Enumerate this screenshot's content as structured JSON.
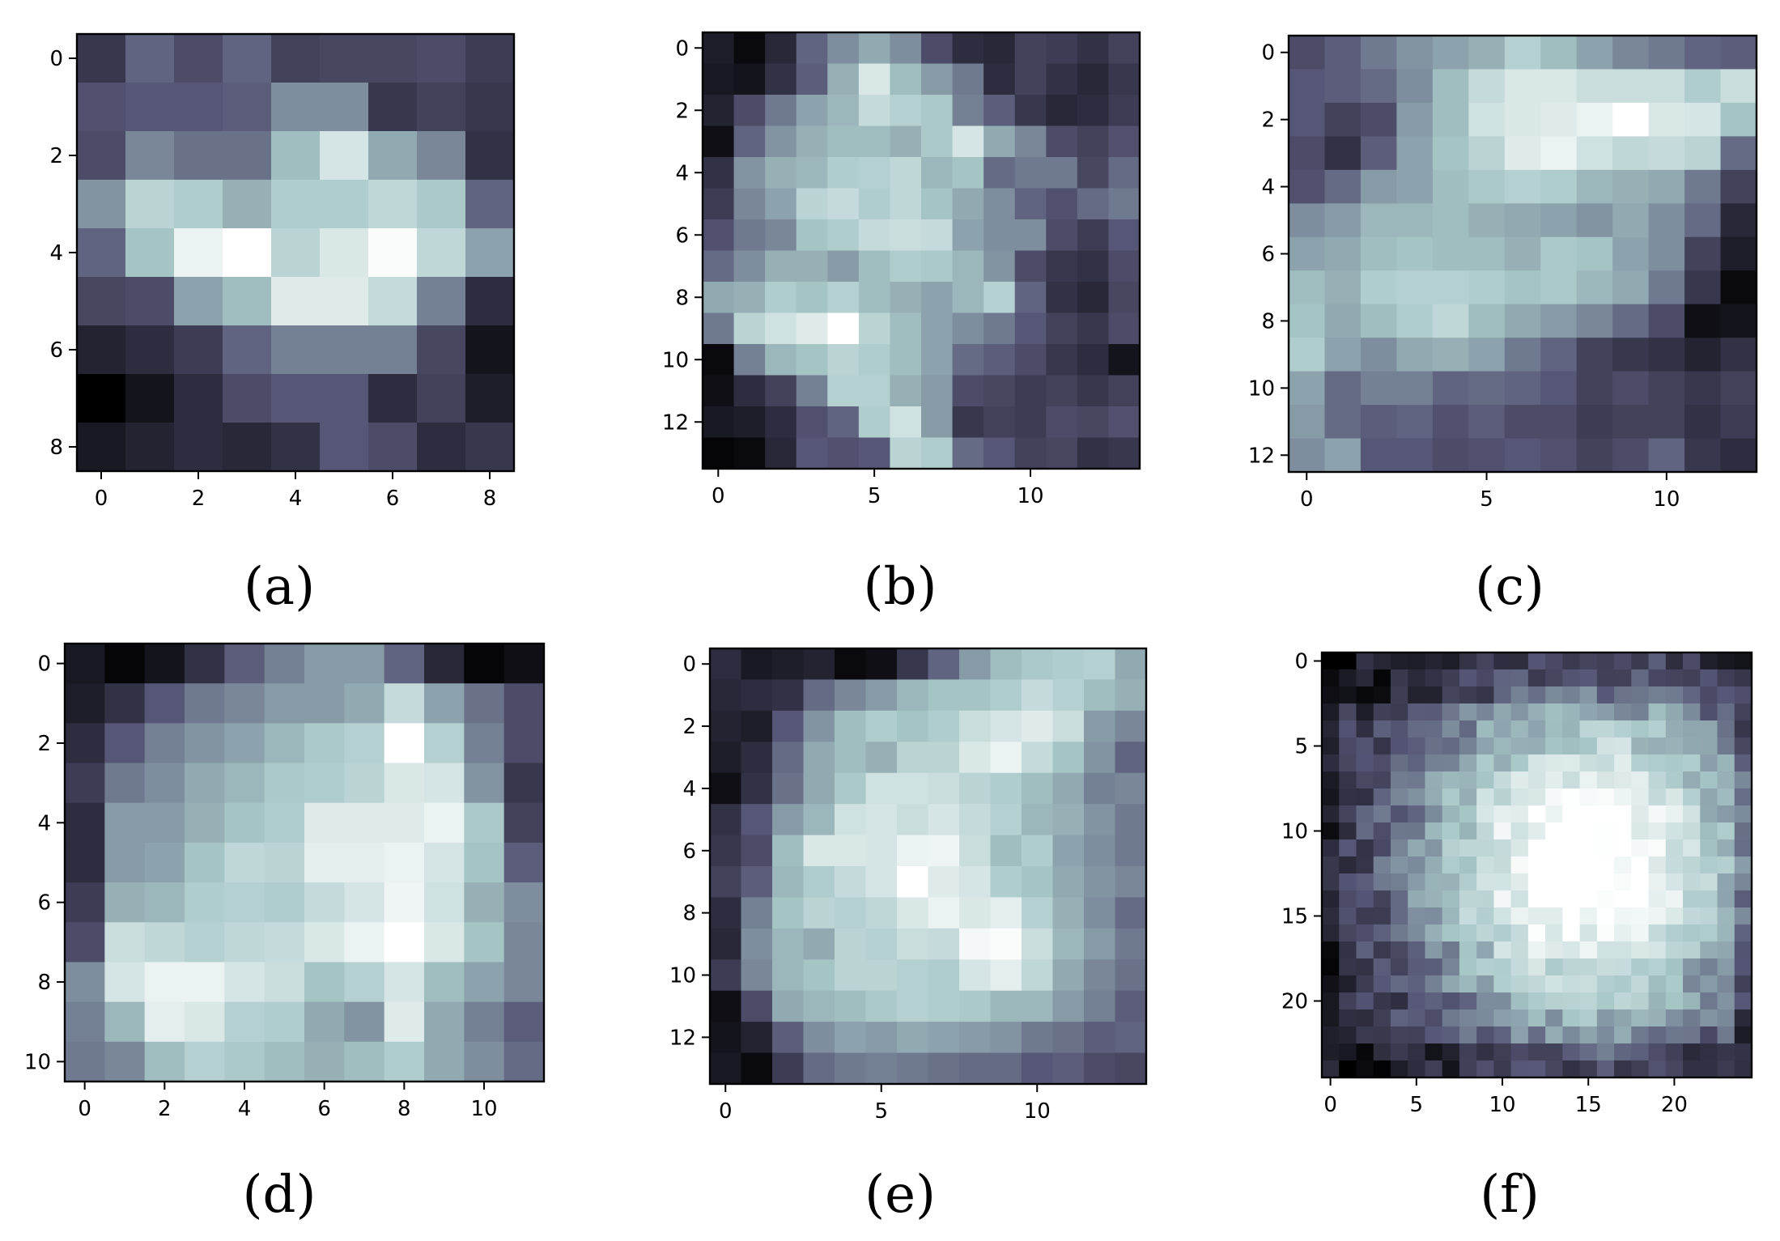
{
  "figure": {
    "colormap": "bone",
    "colormap_stops": [
      "#000000",
      "#545474",
      "#a7c7c7",
      "#ffffff"
    ]
  },
  "chart_data": [
    {
      "type": "heatmap",
      "caption": "(a)",
      "rows": 9,
      "cols": 9,
      "x_ticks": [
        0,
        2,
        4,
        6,
        8
      ],
      "y_ticks": [
        0,
        2,
        4,
        6,
        8
      ],
      "xlim": [
        -0.5,
        8.5
      ],
      "ylim": [
        -0.5,
        8.5
      ],
      "values": [
        [
          0.22,
          0.38,
          0.3,
          0.38,
          0.26,
          0.28,
          0.28,
          0.3,
          0.24
        ],
        [
          0.32,
          0.34,
          0.34,
          0.36,
          0.5,
          0.5,
          0.22,
          0.26,
          0.22
        ],
        [
          0.3,
          0.48,
          0.42,
          0.42,
          0.64,
          0.84,
          0.58,
          0.48,
          0.2
        ],
        [
          0.52,
          0.74,
          0.7,
          0.6,
          0.7,
          0.7,
          0.76,
          0.68,
          0.38
        ],
        [
          0.38,
          0.66,
          0.92,
          1.0,
          0.74,
          0.86,
          0.98,
          0.76,
          0.56
        ],
        [
          0.28,
          0.3,
          0.56,
          0.64,
          0.88,
          0.88,
          0.78,
          0.46,
          0.18
        ],
        [
          0.14,
          0.18,
          0.24,
          0.38,
          0.46,
          0.46,
          0.46,
          0.28,
          0.08
        ],
        [
          0.0,
          0.08,
          0.18,
          0.3,
          0.34,
          0.34,
          0.18,
          0.26,
          0.12
        ],
        [
          0.1,
          0.14,
          0.18,
          0.16,
          0.2,
          0.34,
          0.3,
          0.18,
          0.22
        ]
      ]
    },
    {
      "type": "heatmap",
      "caption": "(b)",
      "rows": 14,
      "cols": 14,
      "x_ticks": [
        0,
        5,
        10
      ],
      "y_ticks": [
        0,
        2,
        4,
        6,
        8,
        10,
        12
      ],
      "xlim": [
        -0.5,
        13.5
      ],
      "ylim": [
        -0.5,
        13.5
      ],
      "values": [
        [
          0.12,
          0.04,
          0.16,
          0.38,
          0.5,
          0.58,
          0.5,
          0.3,
          0.18,
          0.16,
          0.26,
          0.24,
          0.2,
          0.26
        ],
        [
          0.1,
          0.08,
          0.2,
          0.36,
          0.6,
          0.86,
          0.64,
          0.54,
          0.44,
          0.18,
          0.26,
          0.2,
          0.16,
          0.22
        ],
        [
          0.14,
          0.3,
          0.44,
          0.56,
          0.62,
          0.78,
          0.72,
          0.68,
          0.46,
          0.36,
          0.22,
          0.16,
          0.18,
          0.24
        ],
        [
          0.06,
          0.38,
          0.52,
          0.6,
          0.64,
          0.64,
          0.6,
          0.68,
          0.84,
          0.58,
          0.48,
          0.3,
          0.26,
          0.32
        ],
        [
          0.2,
          0.52,
          0.6,
          0.62,
          0.7,
          0.72,
          0.76,
          0.62,
          0.66,
          0.4,
          0.44,
          0.44,
          0.28,
          0.4
        ],
        [
          0.24,
          0.48,
          0.56,
          0.74,
          0.78,
          0.7,
          0.76,
          0.66,
          0.58,
          0.5,
          0.38,
          0.32,
          0.4,
          0.44
        ],
        [
          0.32,
          0.44,
          0.48,
          0.66,
          0.7,
          0.78,
          0.8,
          0.78,
          0.56,
          0.5,
          0.5,
          0.3,
          0.24,
          0.34
        ],
        [
          0.4,
          0.5,
          0.6,
          0.6,
          0.54,
          0.64,
          0.7,
          0.68,
          0.62,
          0.52,
          0.3,
          0.22,
          0.2,
          0.3
        ],
        [
          0.58,
          0.6,
          0.7,
          0.66,
          0.72,
          0.64,
          0.6,
          0.56,
          0.62,
          0.72,
          0.38,
          0.2,
          0.16,
          0.28
        ],
        [
          0.44,
          0.74,
          0.82,
          0.88,
          1.0,
          0.74,
          0.64,
          0.56,
          0.5,
          0.44,
          0.34,
          0.26,
          0.22,
          0.3
        ],
        [
          0.04,
          0.46,
          0.62,
          0.66,
          0.74,
          0.7,
          0.64,
          0.56,
          0.4,
          0.36,
          0.3,
          0.22,
          0.18,
          0.08
        ],
        [
          0.06,
          0.18,
          0.26,
          0.46,
          0.72,
          0.72,
          0.6,
          0.54,
          0.3,
          0.28,
          0.24,
          0.26,
          0.22,
          0.26
        ],
        [
          0.1,
          0.12,
          0.18,
          0.32,
          0.38,
          0.7,
          0.82,
          0.54,
          0.22,
          0.26,
          0.24,
          0.3,
          0.28,
          0.32
        ],
        [
          0.02,
          0.04,
          0.16,
          0.34,
          0.32,
          0.34,
          0.74,
          0.7,
          0.4,
          0.34,
          0.26,
          0.28,
          0.2,
          0.22
        ]
      ]
    },
    {
      "type": "heatmap",
      "caption": "(c)",
      "rows": 13,
      "cols": 13,
      "x_ticks": [
        0,
        5,
        10
      ],
      "y_ticks": [
        0,
        2,
        4,
        6,
        8,
        10,
        12
      ],
      "xlim": [
        -0.5,
        12.5
      ],
      "ylim": [
        -0.5,
        12.5
      ],
      "values": [
        [
          0.3,
          0.36,
          0.44,
          0.52,
          0.56,
          0.6,
          0.72,
          0.64,
          0.56,
          0.48,
          0.44,
          0.38,
          0.36
        ],
        [
          0.34,
          0.36,
          0.4,
          0.5,
          0.64,
          0.78,
          0.86,
          0.86,
          0.8,
          0.8,
          0.8,
          0.7,
          0.8
        ],
        [
          0.34,
          0.26,
          0.3,
          0.54,
          0.64,
          0.82,
          0.86,
          0.88,
          0.92,
          1.0,
          0.86,
          0.84,
          0.66
        ],
        [
          0.3,
          0.2,
          0.36,
          0.56,
          0.66,
          0.74,
          0.88,
          0.92,
          0.82,
          0.76,
          0.78,
          0.74,
          0.4
        ],
        [
          0.32,
          0.4,
          0.54,
          0.56,
          0.64,
          0.68,
          0.72,
          0.7,
          0.62,
          0.6,
          0.58,
          0.44,
          0.26
        ],
        [
          0.5,
          0.54,
          0.62,
          0.62,
          0.64,
          0.6,
          0.58,
          0.56,
          0.52,
          0.58,
          0.5,
          0.4,
          0.16
        ],
        [
          0.56,
          0.58,
          0.64,
          0.66,
          0.64,
          0.64,
          0.6,
          0.68,
          0.66,
          0.56,
          0.5,
          0.26,
          0.12
        ],
        [
          0.64,
          0.6,
          0.7,
          0.72,
          0.72,
          0.7,
          0.66,
          0.68,
          0.62,
          0.58,
          0.44,
          0.22,
          0.04
        ],
        [
          0.66,
          0.58,
          0.64,
          0.7,
          0.76,
          0.64,
          0.58,
          0.54,
          0.48,
          0.4,
          0.3,
          0.06,
          0.08
        ],
        [
          0.7,
          0.56,
          0.5,
          0.58,
          0.6,
          0.56,
          0.44,
          0.38,
          0.26,
          0.22,
          0.2,
          0.14,
          0.2
        ],
        [
          0.56,
          0.4,
          0.46,
          0.46,
          0.38,
          0.4,
          0.38,
          0.34,
          0.26,
          0.3,
          0.26,
          0.22,
          0.26
        ],
        [
          0.54,
          0.4,
          0.36,
          0.38,
          0.32,
          0.36,
          0.3,
          0.3,
          0.24,
          0.26,
          0.26,
          0.2,
          0.24
        ],
        [
          0.5,
          0.56,
          0.34,
          0.34,
          0.3,
          0.32,
          0.34,
          0.32,
          0.26,
          0.3,
          0.38,
          0.22,
          0.18
        ]
      ]
    },
    {
      "type": "heatmap",
      "caption": "(d)",
      "rows": 11,
      "cols": 12,
      "x_ticks": [
        0,
        2,
        4,
        6,
        8,
        10
      ],
      "y_ticks": [
        0,
        2,
        4,
        6,
        8,
        10
      ],
      "xlim": [
        -0.5,
        11.5
      ],
      "ylim": [
        -0.5,
        10.5
      ],
      "values": [
        [
          0.1,
          0.02,
          0.08,
          0.2,
          0.36,
          0.46,
          0.54,
          0.54,
          0.38,
          0.16,
          0.02,
          0.06
        ],
        [
          0.12,
          0.2,
          0.34,
          0.44,
          0.48,
          0.54,
          0.54,
          0.58,
          0.78,
          0.56,
          0.42,
          0.3
        ],
        [
          0.18,
          0.34,
          0.46,
          0.52,
          0.56,
          0.62,
          0.68,
          0.72,
          1.0,
          0.72,
          0.46,
          0.3
        ],
        [
          0.24,
          0.44,
          0.5,
          0.58,
          0.62,
          0.68,
          0.7,
          0.74,
          0.86,
          0.84,
          0.52,
          0.22
        ],
        [
          0.18,
          0.54,
          0.54,
          0.6,
          0.66,
          0.7,
          0.88,
          0.88,
          0.88,
          0.92,
          0.68,
          0.26
        ],
        [
          0.18,
          0.54,
          0.56,
          0.66,
          0.76,
          0.74,
          0.9,
          0.9,
          0.92,
          0.84,
          0.66,
          0.36
        ],
        [
          0.24,
          0.6,
          0.62,
          0.7,
          0.72,
          0.7,
          0.78,
          0.84,
          0.94,
          0.82,
          0.6,
          0.5
        ],
        [
          0.3,
          0.8,
          0.76,
          0.72,
          0.76,
          0.78,
          0.86,
          0.92,
          1.0,
          0.86,
          0.66,
          0.48
        ],
        [
          0.5,
          0.84,
          0.92,
          0.92,
          0.84,
          0.8,
          0.66,
          0.72,
          0.84,
          0.64,
          0.56,
          0.48
        ],
        [
          0.46,
          0.62,
          0.9,
          0.86,
          0.72,
          0.7,
          0.58,
          0.52,
          0.88,
          0.58,
          0.46,
          0.36
        ],
        [
          0.44,
          0.48,
          0.64,
          0.72,
          0.68,
          0.64,
          0.6,
          0.64,
          0.7,
          0.58,
          0.5,
          0.4
        ]
      ]
    },
    {
      "type": "heatmap",
      "caption": "(e)",
      "rows": 14,
      "cols": 14,
      "x_ticks": [
        0,
        5,
        10
      ],
      "y_ticks": [
        0,
        2,
        4,
        6,
        8,
        10,
        12
      ],
      "xlim": [
        -0.5,
        13.5
      ],
      "ylim": [
        -0.5,
        13.5
      ],
      "values": [
        [
          0.18,
          0.1,
          0.12,
          0.14,
          0.04,
          0.06,
          0.22,
          0.38,
          0.54,
          0.64,
          0.68,
          0.7,
          0.72,
          0.58
        ],
        [
          0.16,
          0.18,
          0.2,
          0.4,
          0.48,
          0.54,
          0.62,
          0.66,
          0.66,
          0.7,
          0.78,
          0.72,
          0.64,
          0.6
        ],
        [
          0.14,
          0.12,
          0.34,
          0.52,
          0.64,
          0.7,
          0.66,
          0.7,
          0.8,
          0.84,
          0.88,
          0.8,
          0.54,
          0.48
        ],
        [
          0.12,
          0.18,
          0.4,
          0.58,
          0.64,
          0.6,
          0.74,
          0.74,
          0.86,
          0.92,
          0.78,
          0.66,
          0.52,
          0.38
        ],
        [
          0.06,
          0.2,
          0.42,
          0.58,
          0.68,
          0.82,
          0.82,
          0.8,
          0.74,
          0.7,
          0.64,
          0.58,
          0.46,
          0.48
        ],
        [
          0.2,
          0.34,
          0.54,
          0.62,
          0.82,
          0.84,
          0.8,
          0.84,
          0.78,
          0.72,
          0.62,
          0.6,
          0.52,
          0.44
        ],
        [
          0.22,
          0.3,
          0.64,
          0.86,
          0.86,
          0.84,
          0.92,
          0.94,
          0.8,
          0.64,
          0.7,
          0.56,
          0.5,
          0.44
        ],
        [
          0.26,
          0.36,
          0.62,
          0.7,
          0.78,
          0.84,
          1.0,
          0.88,
          0.84,
          0.7,
          0.66,
          0.58,
          0.52,
          0.48
        ],
        [
          0.18,
          0.46,
          0.66,
          0.74,
          0.72,
          0.76,
          0.86,
          0.92,
          0.86,
          0.9,
          0.72,
          0.6,
          0.5,
          0.4
        ],
        [
          0.16,
          0.5,
          0.62,
          0.58,
          0.74,
          0.72,
          0.8,
          0.78,
          0.96,
          0.98,
          0.8,
          0.62,
          0.54,
          0.44
        ],
        [
          0.24,
          0.48,
          0.62,
          0.66,
          0.74,
          0.74,
          0.72,
          0.7,
          0.84,
          0.9,
          0.76,
          0.58,
          0.48,
          0.42
        ],
        [
          0.06,
          0.3,
          0.58,
          0.62,
          0.64,
          0.68,
          0.72,
          0.7,
          0.68,
          0.62,
          0.62,
          0.54,
          0.46,
          0.36
        ],
        [
          0.08,
          0.14,
          0.36,
          0.5,
          0.56,
          0.54,
          0.58,
          0.56,
          0.54,
          0.52,
          0.44,
          0.42,
          0.36,
          0.38
        ],
        [
          0.1,
          0.04,
          0.24,
          0.4,
          0.44,
          0.46,
          0.44,
          0.42,
          0.4,
          0.4,
          0.34,
          0.36,
          0.3,
          0.28
        ]
      ]
    },
    {
      "type": "heatmap",
      "caption": "(f)",
      "rows": 25,
      "cols": 25,
      "x_ticks": [
        0,
        5,
        10,
        15,
        20
      ],
      "y_ticks": [
        0,
        5,
        10,
        15,
        20
      ],
      "xlim": [
        -0.5,
        24.5
      ],
      "ylim": [
        -0.5,
        24.5
      ],
      "generator": "radial-blob",
      "center": [
        15,
        12
      ],
      "radius": 10,
      "seed": 7
    }
  ]
}
